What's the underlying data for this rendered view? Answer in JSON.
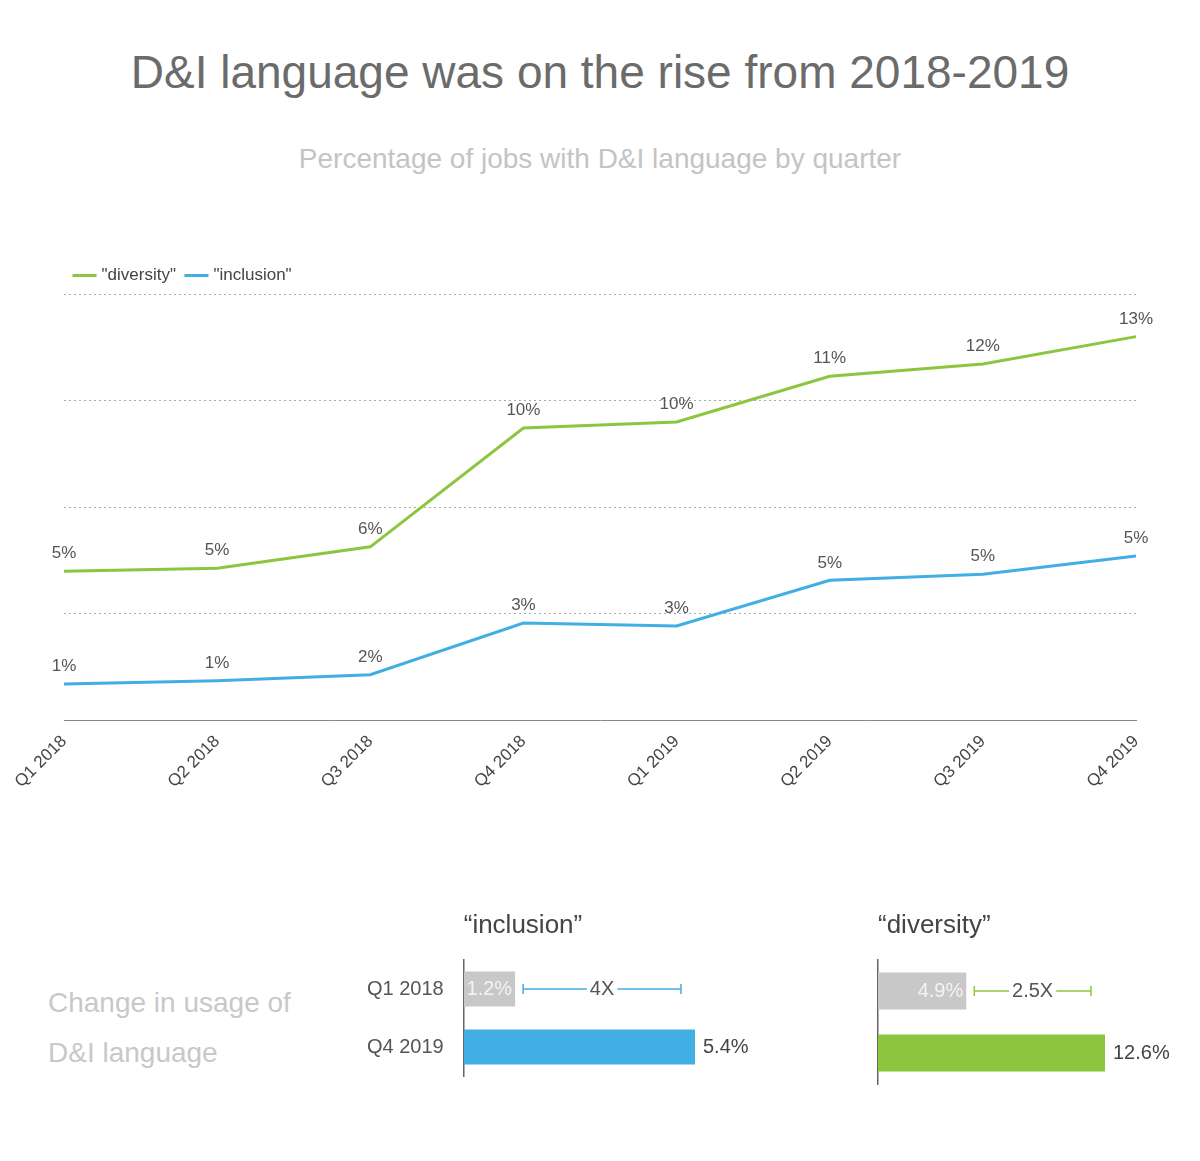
{
  "chart_data": [
    {
      "type": "line",
      "title": "D&I language was on the rise from 2018-2019",
      "subtitle": "Percentage of jobs with D&I language by quarter",
      "categories": [
        "Q1 2018",
        "Q2 2018",
        "Q3 2018",
        "Q4 2018",
        "Q1 2019",
        "Q2 2019",
        "Q3 2019",
        "Q4 2019"
      ],
      "series": [
        {
          "name": "\"diversity\"",
          "color": "#8cc63f",
          "values": [
            4.9,
            5.0,
            5.7,
            9.6,
            9.8,
            11.3,
            11.7,
            12.6
          ],
          "value_labels": [
            "5%",
            "5%",
            "6%",
            "10%",
            "10%",
            "11%",
            "12%",
            "13%"
          ]
        },
        {
          "name": "\"inclusion\"",
          "color": "#41afe3",
          "values": [
            1.2,
            1.3,
            1.5,
            3.2,
            3.1,
            4.6,
            4.8,
            5.4
          ],
          "value_labels": [
            "1%",
            "1%",
            "2%",
            "3%",
            "3%",
            "5%",
            "5%",
            "5%"
          ]
        }
      ],
      "ylim": [
        0,
        14
      ],
      "yticks": [
        0,
        3.5,
        7,
        10.5,
        14
      ],
      "grid": true,
      "legend": "top left",
      "data_labels": true,
      "tick_labels": "x"
    },
    {
      "type": "bar",
      "orientation": "horizontal",
      "title": "“inclusion”",
      "ylabel": "Change in usage of D&I language",
      "categories": [
        "Q1 2018",
        "Q4 2019"
      ],
      "values": [
        1.2,
        5.4
      ],
      "value_labels": [
        "1.2%",
        "5.4%"
      ],
      "colors": [
        "#c8c8c8",
        "#41afe3"
      ],
      "xlim": [
        0,
        5.4
      ],
      "annotation": "4X",
      "data_labels": true,
      "tick_labels": "y"
    },
    {
      "type": "bar",
      "orientation": "horizontal",
      "title": "“diversity”",
      "categories": [
        null,
        null
      ],
      "values": [
        4.9,
        12.6
      ],
      "value_labels": [
        "4.9%",
        "12.6%"
      ],
      "colors": [
        "#c8c8c8",
        "#8cc63f"
      ],
      "xlim": [
        0,
        12.6
      ],
      "annotation": "2.5X",
      "data_labels": true,
      "tick_labels": false
    }
  ]
}
